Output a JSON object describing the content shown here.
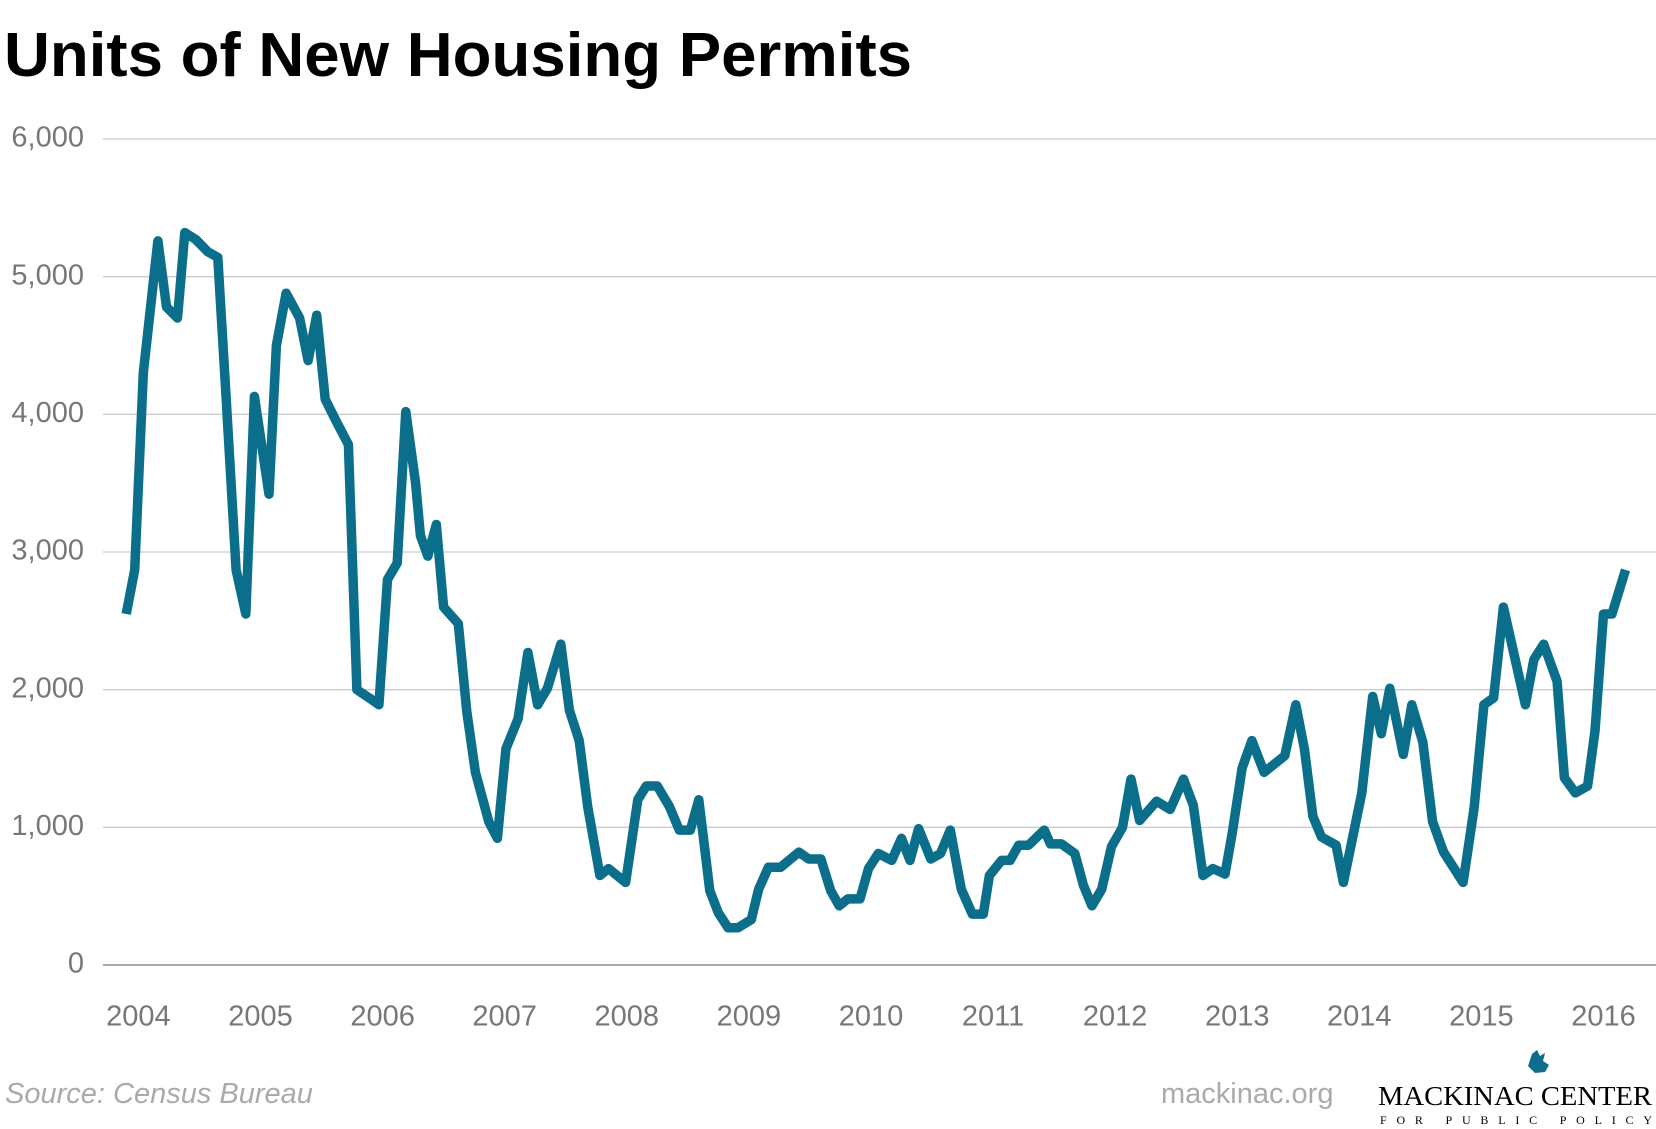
{
  "chart_data": {
    "type": "line",
    "title": "Units of New Housing Permits",
    "source": "Source: Census Bureau",
    "site": "mackinac.org",
    "logo_name": "MACKINAC CENTER",
    "logo_tagline": "FOR PUBLIC POLICY",
    "grid": true,
    "xlim": [
      2003.71,
      2016.43
    ],
    "xticks": [
      2004,
      2005,
      2006,
      2007,
      2008,
      2009,
      2010,
      2011,
      2012,
      2013,
      2014,
      2015,
      2016
    ],
    "ylim": [
      0,
      6000
    ],
    "yticks": [
      0,
      {
        "value": 1000,
        "label": "1,000"
      },
      {
        "value": 2000,
        "label": "2,000"
      },
      {
        "value": 3000,
        "label": "3,000"
      },
      {
        "value": 4000,
        "label": "4,000"
      },
      {
        "value": 5000,
        "label": "5,000"
      },
      {
        "value": 6000,
        "label": "6,000"
      }
    ],
    "x": [
      2003.9,
      2003.97,
      2004.04,
      2004.16,
      2004.23,
      2004.32,
      2004.38,
      2004.47,
      2004.57,
      2004.65,
      2004.72,
      2004.8,
      2004.88,
      2004.95,
      2005.07,
      2005.13,
      2005.21,
      2005.32,
      2005.39,
      2005.46,
      2005.53,
      2005.62,
      2005.72,
      2005.79,
      2005.89,
      2005.97,
      2006.04,
      2006.12,
      2006.19,
      2006.27,
      2006.31,
      2006.37,
      2006.44,
      2006.5,
      2006.62,
      2006.69,
      2006.76,
      2006.87,
      2006.94,
      2007.01,
      2007.11,
      2007.19,
      2007.27,
      2007.35,
      2007.46,
      2007.53,
      2007.61,
      2007.68,
      2007.78,
      2007.85,
      2007.99,
      2008.09,
      2008.16,
      2008.25,
      2008.35,
      2008.43,
      2008.52,
      2008.59,
      2008.68,
      2008.75,
      2008.83,
      2008.91,
      2009.02,
      2009.08,
      2009.16,
      2009.26,
      2009.41,
      2009.49,
      2009.59,
      2009.67,
      2009.74,
      2009.81,
      2009.91,
      2009.98,
      2010.06,
      2010.17,
      2010.25,
      2010.32,
      2010.39,
      2010.49,
      2010.57,
      2010.65,
      2010.74,
      2010.83,
      2010.92,
      2010.97,
      2011.07,
      2011.14,
      2011.21,
      2011.29,
      2011.42,
      2011.47,
      2011.56,
      2011.67,
      2011.74,
      2011.81,
      2011.89,
      2011.97,
      2012.06,
      2012.13,
      2012.2,
      2012.34,
      2012.45,
      2012.56,
      2012.64,
      2012.72,
      2012.8,
      2012.9,
      2012.96,
      2013.04,
      2013.12,
      2013.22,
      2013.39,
      2013.48,
      2013.55,
      2013.62,
      2013.69,
      2013.81,
      2013.87,
      2014.02,
      2014.11,
      2014.18,
      2014.25,
      2014.36,
      2014.43,
      2014.52,
      2014.6,
      2014.69,
      2014.85,
      2014.94,
      2015.02,
      2015.1,
      2015.18,
      2015.36,
      2015.43,
      2015.51,
      2015.62,
      2015.68,
      2015.77,
      2015.87,
      2015.93,
      2016.0,
      2016.07,
      2016.18
    ],
    "series": [
      {
        "name": "Units",
        "color": "#0b6f8c",
        "values": [
          2550,
          2870,
          4300,
          5260,
          4780,
          4700,
          5320,
          5270,
          5180,
          5140,
          4100,
          2870,
          2550,
          4130,
          3420,
          4500,
          4880,
          4700,
          4390,
          4720,
          4110,
          3950,
          3780,
          2000,
          1940,
          1890,
          2800,
          2920,
          4020,
          3500,
          3120,
          2970,
          3200,
          2600,
          2480,
          1840,
          1400,
          1040,
          920,
          1570,
          1790,
          2270,
          1890,
          2010,
          2330,
          1850,
          1630,
          1150,
          650,
          700,
          600,
          1200,
          1300,
          1300,
          1150,
          980,
          980,
          1200,
          540,
          380,
          270,
          270,
          330,
          550,
          710,
          710,
          820,
          770,
          770,
          540,
          430,
          480,
          480,
          700,
          810,
          760,
          920,
          760,
          990,
          770,
          810,
          980,
          550,
          370,
          370,
          650,
          760,
          760,
          870,
          870,
          980,
          880,
          880,
          810,
          580,
          430,
          550,
          860,
          1000,
          1350,
          1050,
          1190,
          1130,
          1350,
          1160,
          650,
          700,
          660,
          960,
          1430,
          1630,
          1400,
          1520,
          1890,
          1570,
          1080,
          930,
          870,
          600,
          1250,
          1950,
          1680,
          2010,
          1530,
          1890,
          1620,
          1040,
          820,
          600,
          1140,
          1890,
          1940,
          2600,
          1890,
          2220,
          2330,
          2060,
          1360,
          1250,
          1300,
          1700,
          2550,
          2550,
          2870
        ]
      }
    ]
  }
}
